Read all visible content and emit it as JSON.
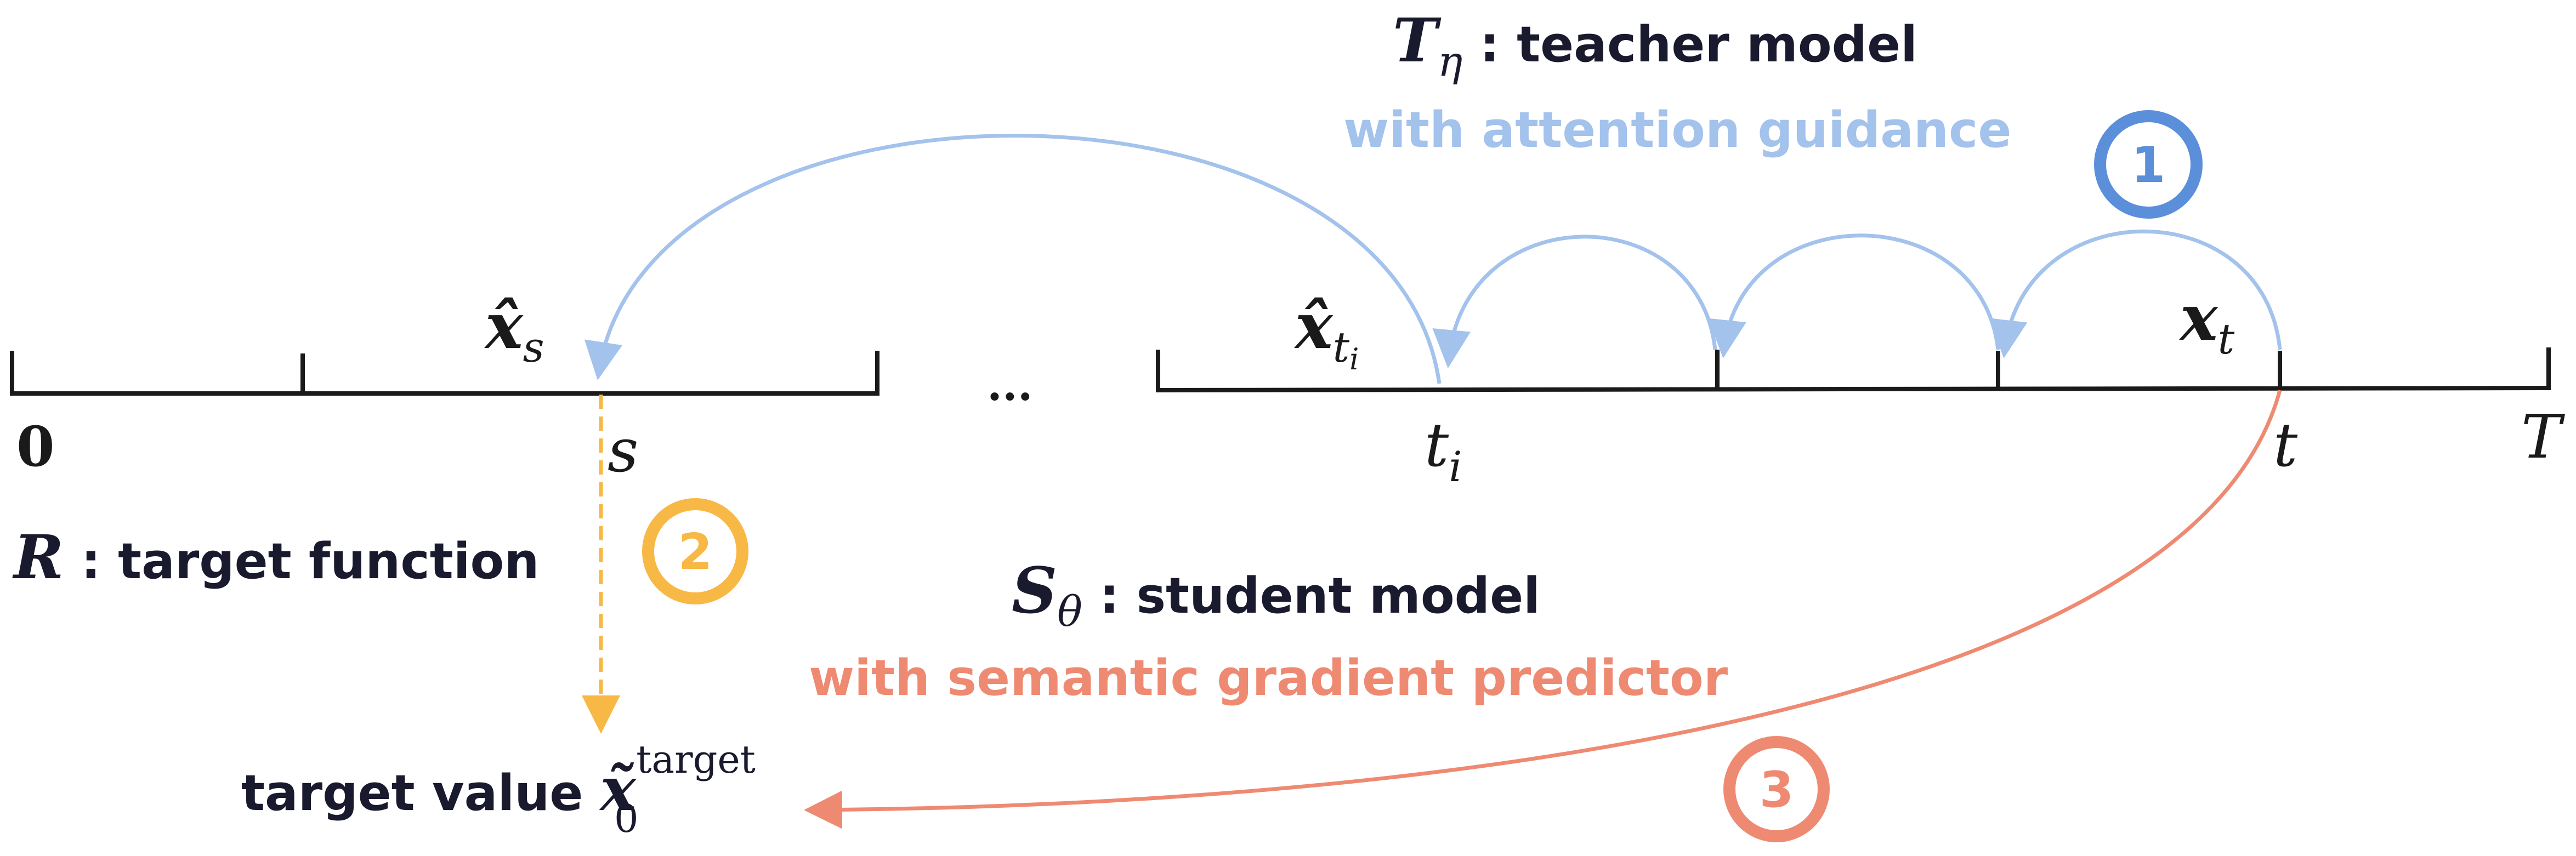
{
  "colors": {
    "axis": "#1a1a1a",
    "text": "#1a1a2e",
    "teacher": "#a3c2ec",
    "teacher_badge": "#5b8fd9",
    "student": "#ef8a72",
    "target": "#f8b845"
  },
  "axis": {
    "zero": "0",
    "s": "s",
    "t_i": "t",
    "t_i_sub": "i",
    "t": "t",
    "T": "T",
    "ellipsis": "..."
  },
  "states": {
    "x_s": "x̂",
    "x_s_sub": "s",
    "x_ti": "x̂",
    "x_ti_sub": "t",
    "x_ti_subsub": "i",
    "x_t": "x",
    "x_t_sub": "t"
  },
  "teacher": {
    "symbol": "T",
    "symbol_sub": "η",
    "label": " : teacher model",
    "guidance": "with attention guidance"
  },
  "student": {
    "symbol": "S",
    "symbol_sub": "θ",
    "label": " : student model",
    "predictor": "with semantic gradient predictor"
  },
  "target_function": {
    "symbol": "R",
    "label": " : target function"
  },
  "target_value": {
    "label": "target value ",
    "symbol": "x̃",
    "sub": "0",
    "sup": "target"
  },
  "badges": {
    "one": "1",
    "two": "2",
    "three": "3"
  }
}
